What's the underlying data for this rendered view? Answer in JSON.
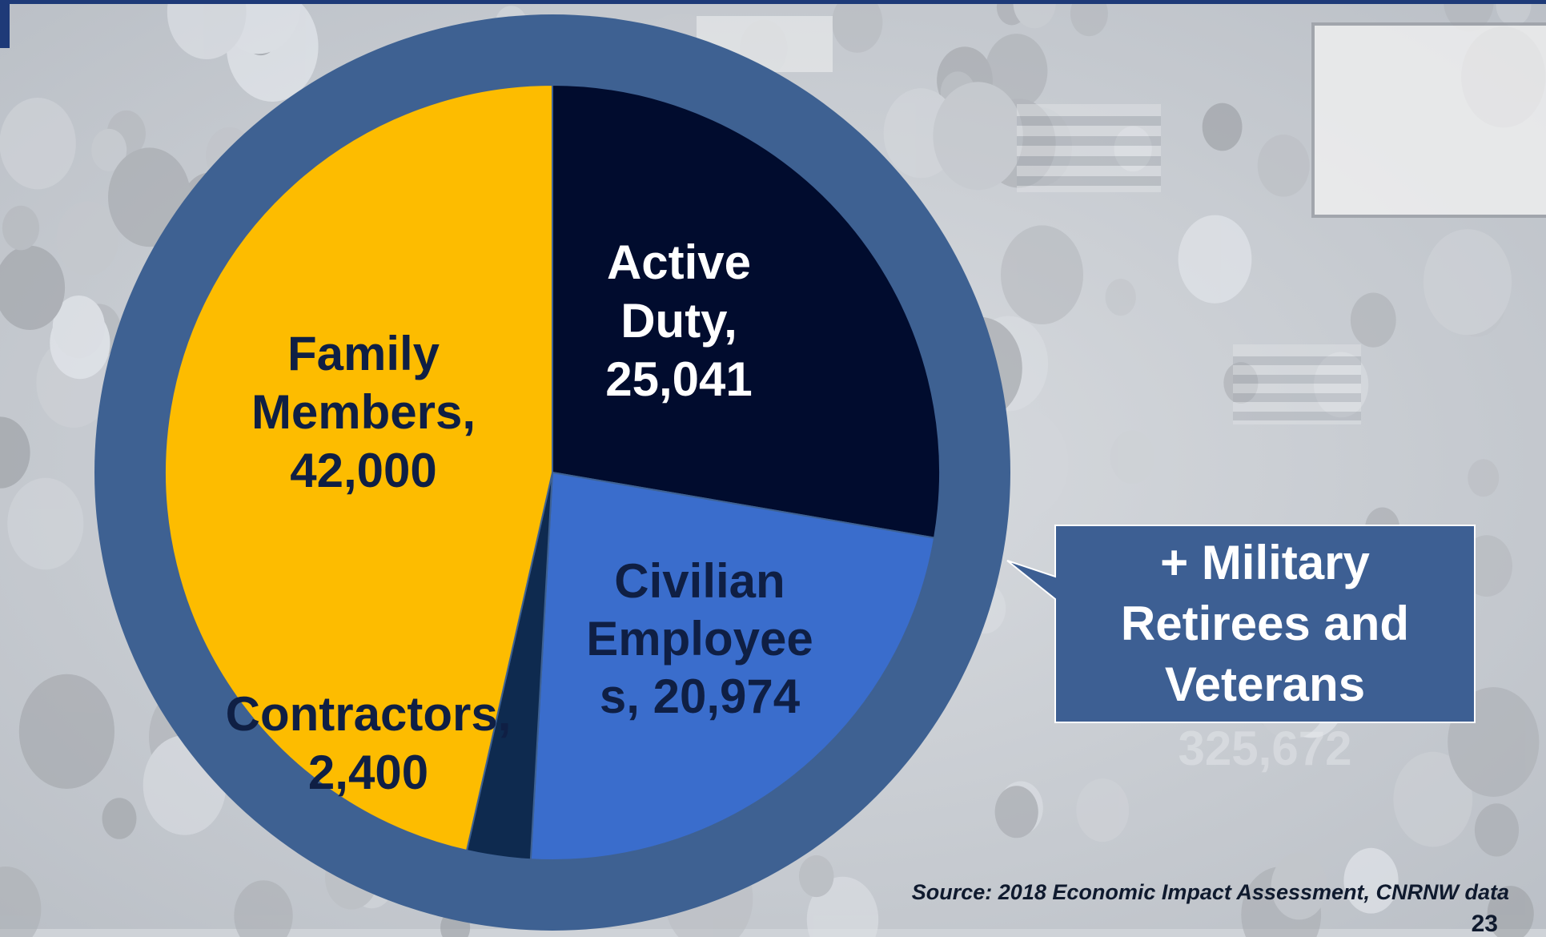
{
  "chart_data": {
    "type": "pie",
    "categories": [
      "Active Duty",
      "Civilian Employees",
      "Contractors",
      "Family Members"
    ],
    "values": [
      25041,
      20974,
      2400,
      42000
    ],
    "labels": [
      "Active Duty, 25,041",
      "Civilian Employees, 20,974",
      "Contractors, 2,400",
      "Family Members, 42,000"
    ],
    "slice_colors": [
      "#010c2e",
      "#3a6dcc",
      "#0e2a4f",
      "#fdbc00"
    ],
    "start_angle_deg": 0,
    "direction": "clockwise",
    "legend": "none",
    "data_labels": "on-slice"
  },
  "slice_labels": {
    "active_duty": [
      "Active",
      "Duty,",
      "25,041"
    ],
    "civilian": [
      "Civilian",
      "Employee",
      "s, 20,974"
    ],
    "contractors": [
      "Contractors,",
      "2,400"
    ],
    "family": [
      "Family",
      "Members,",
      "42,000"
    ]
  },
  "callout": {
    "lines": [
      "+ Military",
      "Retirees and",
      "Veterans"
    ],
    "subtext": "325,672"
  },
  "source": "Source: 2018 Economic Impact Assessment, CNRNW data",
  "page_number": "23",
  "colors": {
    "ring": "#3e6192",
    "callout_fill": "#3d5f93",
    "label_dark": "#0f1f44",
    "label_light": "#ffffff",
    "background": "#cfd3d8"
  }
}
